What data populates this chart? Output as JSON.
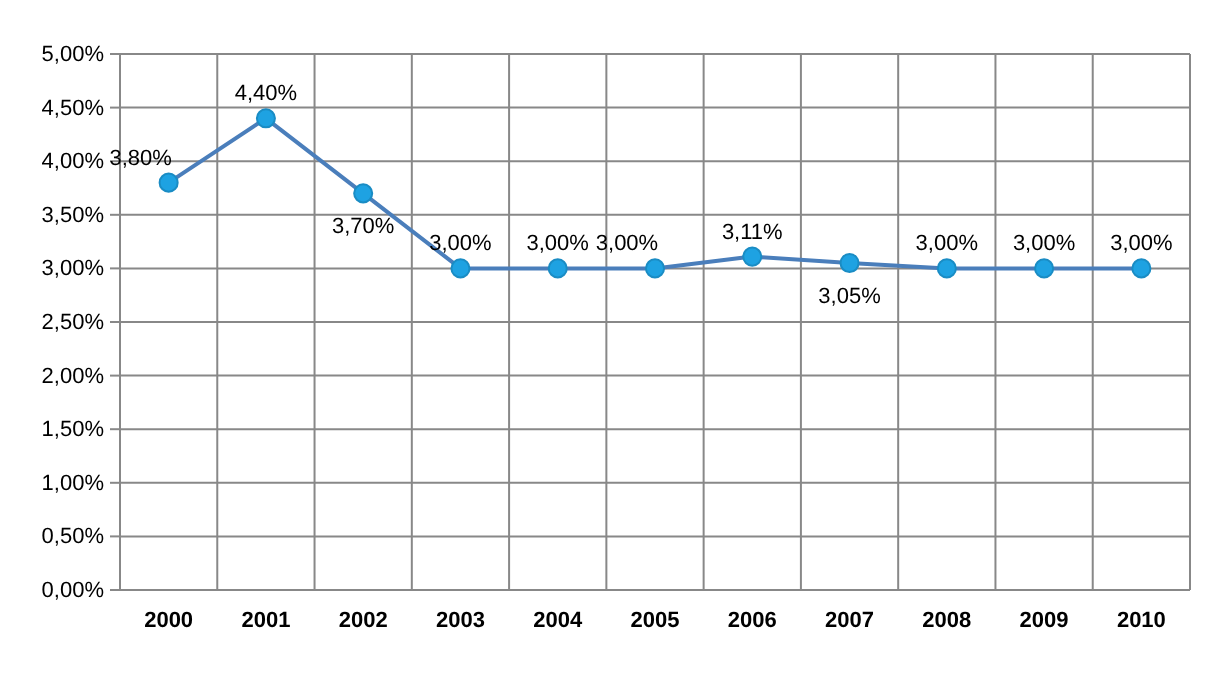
{
  "chart_data": {
    "type": "line",
    "categories": [
      "2000",
      "2001",
      "2002",
      "2003",
      "2004",
      "2005",
      "2006",
      "2007",
      "2008",
      "2009",
      "2010"
    ],
    "series": [
      {
        "color": "#4a7ebb",
        "values": [
          3.8,
          4.4,
          3.7,
          3.0,
          3.0,
          3.0,
          3.11,
          3.05,
          3.0,
          3.0,
          3.0
        ],
        "value_labels": [
          "3,80%",
          "4,40%",
          "3,70%",
          "3,00%",
          "3,00%",
          "3,00%",
          "3,11%",
          "3,05%",
          "3,00%",
          "3,00%",
          "3,00%"
        ]
      }
    ],
    "ylim": [
      0,
      5
    ],
    "yticks": [
      {
        "value": 0,
        "label": "0,00%"
      },
      {
        "value": 0.5,
        "label": "0,50%"
      },
      {
        "value": 1,
        "label": "1,00%"
      },
      {
        "value": 1.5,
        "label": "1,50%"
      },
      {
        "value": 2,
        "label": "2,00%"
      },
      {
        "value": 2.5,
        "label": "2,50%"
      },
      {
        "value": 3,
        "label": "3,00%"
      },
      {
        "value": 3.5,
        "label": "3,50%"
      },
      {
        "value": 4,
        "label": "4,00%"
      },
      {
        "value": 4.5,
        "label": "4,50%"
      },
      {
        "value": 5,
        "label": "5,00%"
      }
    ],
    "grid": true,
    "marker": "circle",
    "line_style": "solid"
  }
}
